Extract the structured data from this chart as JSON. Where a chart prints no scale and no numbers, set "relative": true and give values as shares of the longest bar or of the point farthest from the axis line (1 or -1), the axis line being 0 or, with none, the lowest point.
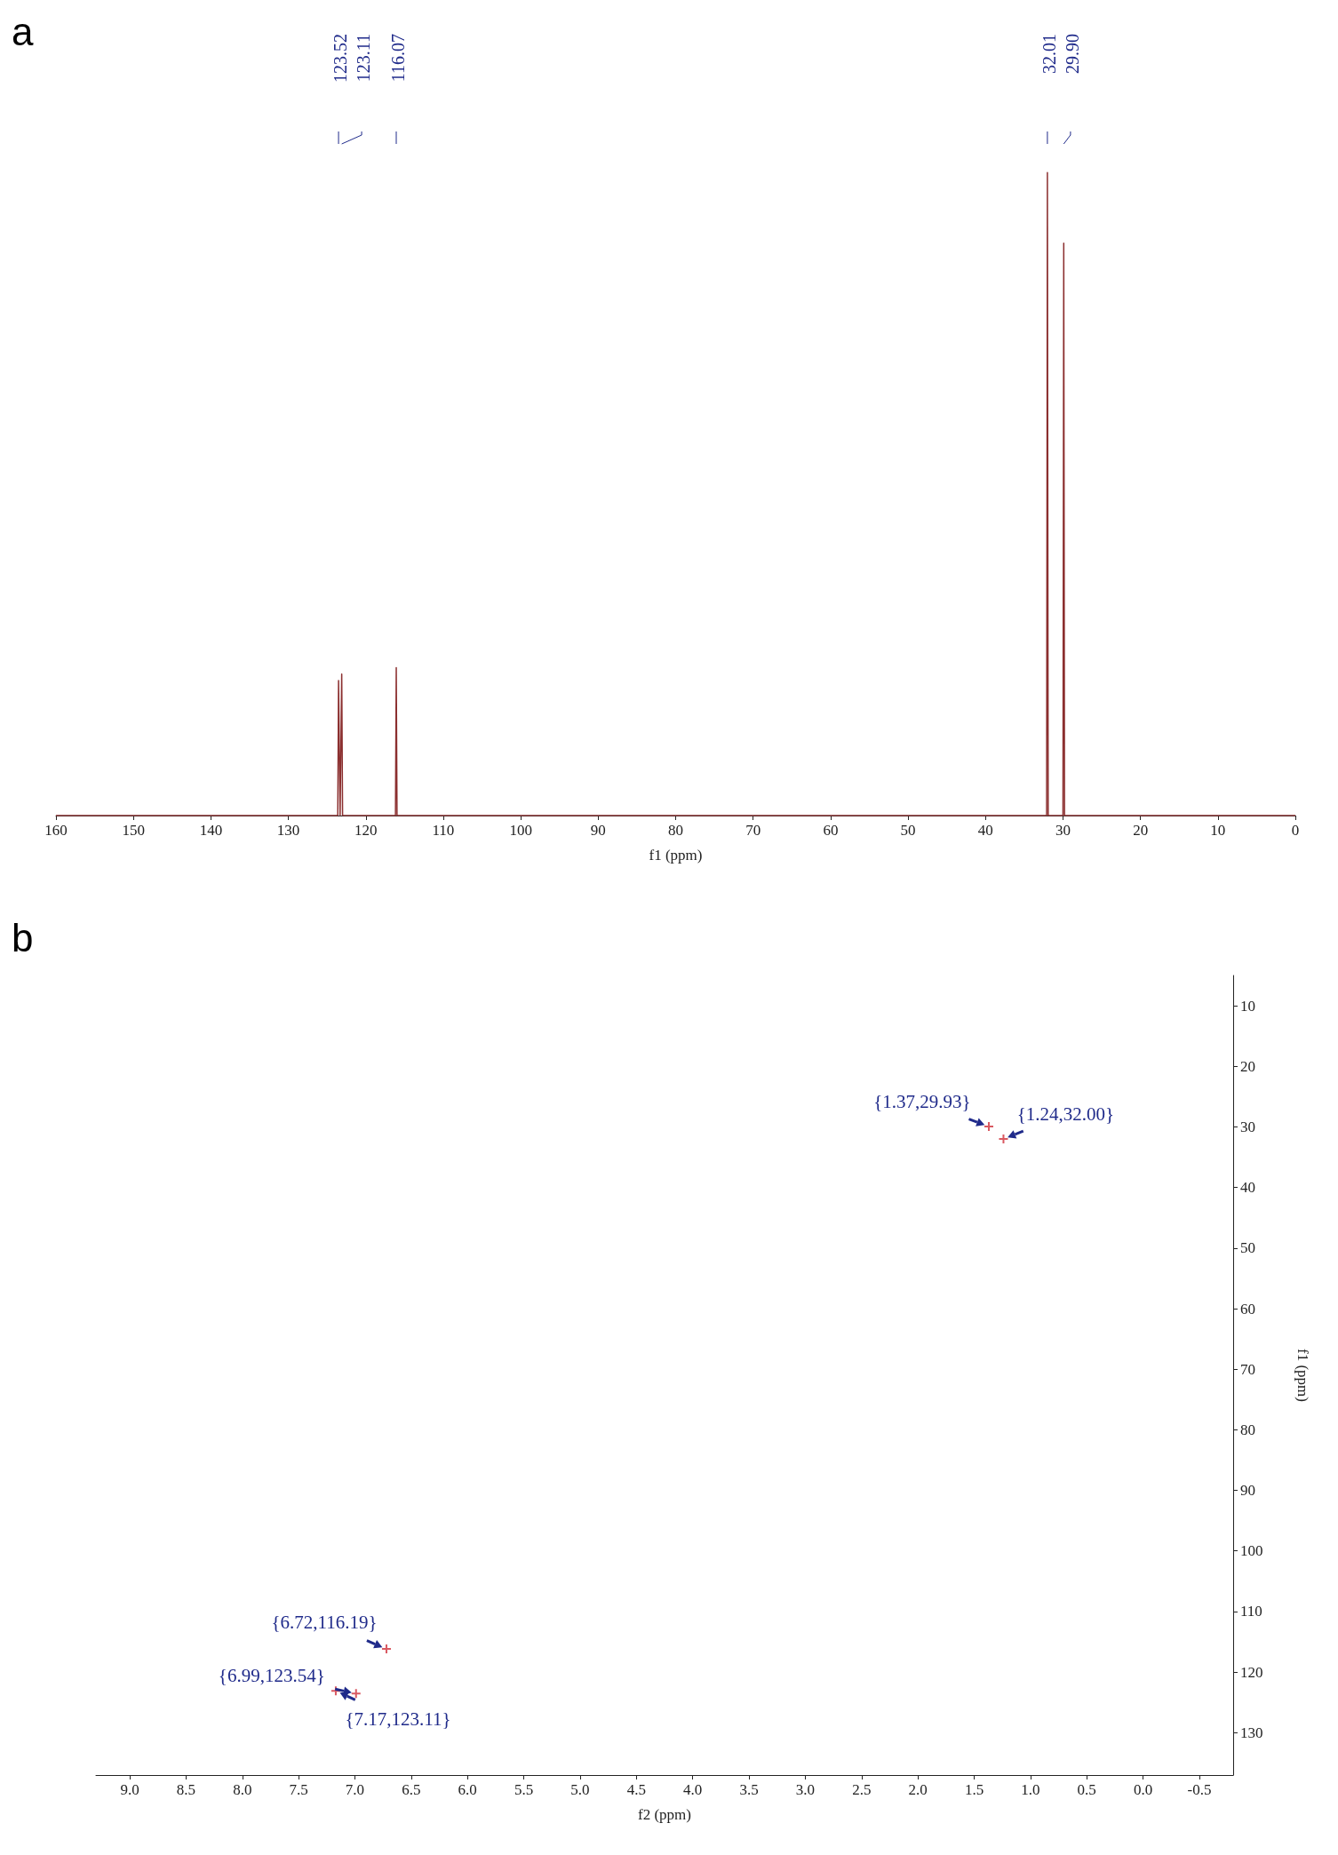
{
  "chart_data": [
    {
      "type": "line",
      "title": "a",
      "xlabel": "f1 (ppm)",
      "relative": true,
      "xlim": [
        160,
        0
      ],
      "xticks": [
        160,
        150,
        140,
        130,
        120,
        110,
        100,
        90,
        80,
        70,
        60,
        50,
        40,
        30,
        20,
        10,
        0
      ],
      "marker": "none",
      "grid": false,
      "series": [
        {
          "color": "#8b2f2f",
          "x": [
            160,
            123.62,
            123.52,
            123.32,
            123.11,
            123.0,
            116.17,
            116.07,
            115.97,
            32.11,
            32.01,
            31.91,
            30.0,
            29.9,
            29.8,
            0
          ],
          "values": [
            0,
            0,
            0.21,
            0,
            0.22,
            0,
            0,
            0.23,
            0,
            0,
            1,
            0,
            0,
            0.89,
            0,
            0
          ]
        }
      ],
      "annotations": [
        "123.52",
        "123.11",
        "116.07",
        "32.01",
        "29.90"
      ]
    },
    {
      "type": "scatter",
      "title": "b",
      "xlabel": "f2 (ppm)",
      "ylabel": "f1 (ppm)",
      "xlim": [
        9.3,
        -0.8
      ],
      "ylim": [
        137,
        5
      ],
      "marker": "cross",
      "grid": false,
      "xticks": [
        {
          "value": 9,
          "label": "9.0"
        },
        {
          "value": 8.5,
          "label": "8.5"
        },
        {
          "value": 8,
          "label": "8.0"
        },
        {
          "value": 7.5,
          "label": "7.5"
        },
        {
          "value": 7,
          "label": "7.0"
        },
        {
          "value": 6.5,
          "label": "6.5"
        },
        {
          "value": 6,
          "label": "6.0"
        },
        {
          "value": 5.5,
          "label": "5.5"
        },
        {
          "value": 5,
          "label": "5.0"
        },
        {
          "value": 4.5,
          "label": "4.5"
        },
        {
          "value": 4,
          "label": "4.0"
        },
        {
          "value": 3.5,
          "label": "3.5"
        },
        {
          "value": 3,
          "label": "3.0"
        },
        {
          "value": 2.5,
          "label": "2.5"
        },
        {
          "value": 2,
          "label": "2.0"
        },
        {
          "value": 1.5,
          "label": "1.5"
        },
        {
          "value": 1,
          "label": "1.0"
        },
        {
          "value": 0.5,
          "label": "0.5"
        },
        {
          "value": 0,
          "label": "0.0"
        },
        {
          "value": -0.5,
          "label": "-0.5"
        }
      ],
      "yticks": [
        10,
        20,
        30,
        40,
        50,
        60,
        70,
        80,
        90,
        100,
        110,
        120,
        130
      ],
      "series": [
        {
          "color": "#d0303a",
          "x": [
            1.37,
            1.24,
            6.72,
            6.99,
            7.17
          ],
          "values": [
            29.93,
            32.0,
            116.19,
            123.54,
            123.11
          ]
        }
      ],
      "annotations": [
        {
          "text": "{1.37,29.93}",
          "x": 1.37,
          "y": 29.93
        },
        {
          "text": "{1.24,32.00}",
          "x": 1.24,
          "y": 32.0
        },
        {
          "text": "{6.72,116.19}",
          "x": 6.72,
          "y": 116.19
        },
        {
          "text": "{6.99,123.54}",
          "x": 6.99,
          "y": 123.54
        },
        {
          "text": "{7.17,123.11}",
          "x": 7.17,
          "y": 123.11
        }
      ]
    }
  ]
}
